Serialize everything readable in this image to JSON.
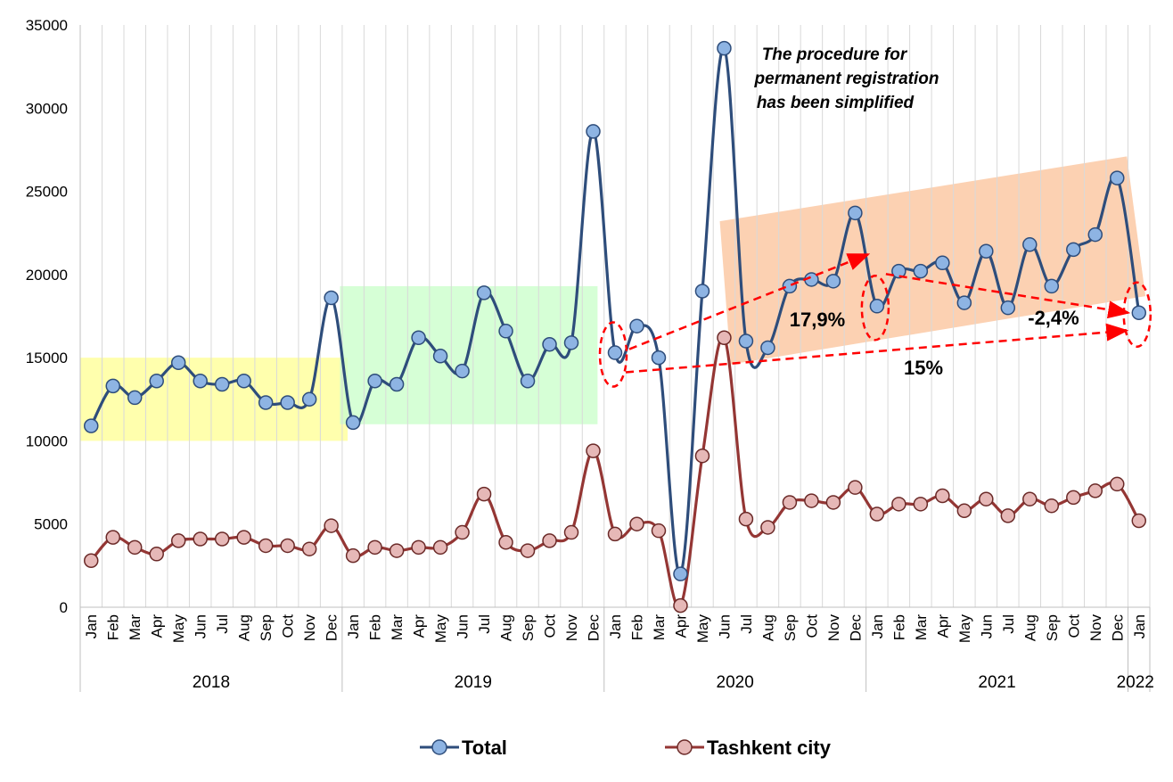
{
  "chart_data": {
    "type": "line",
    "title": "",
    "xlabel": "",
    "ylabel": "",
    "ylim": [
      0,
      35000
    ],
    "yticks": [
      "0",
      "5000",
      "10000",
      "15000",
      "20000",
      "25000",
      "30000",
      "35000"
    ],
    "grid": "vertical gridlines between months",
    "legend_position": "bottom",
    "years": [
      {
        "label": "2018",
        "months": 12
      },
      {
        "label": "2019",
        "months": 12
      },
      {
        "label": "2020",
        "months": 12
      },
      {
        "label": "2021",
        "months": 12
      },
      {
        "label": "2022",
        "months": 1
      }
    ],
    "x": [
      "Jan",
      "Feb",
      "Mar",
      "Apr",
      "May",
      "Jun",
      "Jul",
      "Aug",
      "Sep",
      "Oct",
      "Nov",
      "Dec",
      "Jan",
      "Feb",
      "Mar",
      "Apr",
      "May",
      "Jun",
      "Jul",
      "Aug",
      "Sep",
      "Oct",
      "Nov",
      "Dec",
      "Jan",
      "Feb",
      "Mar",
      "Apr",
      "May",
      "Jun",
      "Jul",
      "Aug",
      "Sep",
      "Oct",
      "Nov",
      "Dec",
      "Jan",
      "Feb",
      "Mar",
      "Apr",
      "May",
      "Jun",
      "Jul",
      "Aug",
      "Sep",
      "Oct",
      "Nov",
      "Dec",
      "Jan"
    ],
    "series": [
      {
        "name": "Total",
        "color": "#2e4d7b",
        "marker_color": "#8eb4e3",
        "values": [
          10900,
          13300,
          12600,
          13600,
          14700,
          13600,
          13400,
          13600,
          12300,
          12300,
          12500,
          18600,
          11100,
          13600,
          13400,
          16200,
          15100,
          14200,
          18900,
          16600,
          13600,
          15800,
          15900,
          28600,
          15300,
          16900,
          15000,
          2000,
          19000,
          33600,
          16000,
          15600,
          19300,
          19700,
          19600,
          23700,
          18100,
          20200,
          20200,
          20700,
          18300,
          21400,
          18000,
          21800,
          19300,
          21500,
          22400,
          25800,
          17700
        ]
      },
      {
        "name": "Tashkent city",
        "color": "#943634",
        "marker_color": "#e6b8b7",
        "values": [
          2800,
          4200,
          3600,
          3200,
          4000,
          4100,
          4100,
          4200,
          3700,
          3700,
          3500,
          4900,
          3100,
          3600,
          3400,
          3600,
          3600,
          4500,
          6800,
          3900,
          3400,
          4000,
          4500,
          9400,
          4400,
          5000,
          4600,
          100,
          9100,
          16200,
          5300,
          4800,
          6300,
          6400,
          6300,
          7200,
          5600,
          6200,
          6200,
          6700,
          5800,
          6500,
          5500,
          6500,
          6100,
          6600,
          7000,
          7400,
          5200
        ]
      }
    ],
    "annotations": {
      "note": [
        "The procedure for",
        "permanent registration",
        "has been simplified"
      ],
      "pct_1": "17,9%",
      "pct_2": "-2,4%",
      "pct_3": "15%"
    },
    "highlight_colors": {
      "2018": "#ffff99",
      "2019": "#ccffcc",
      "2020_2021": "#fbc9a5",
      "arrows": "#ff0000"
    }
  }
}
